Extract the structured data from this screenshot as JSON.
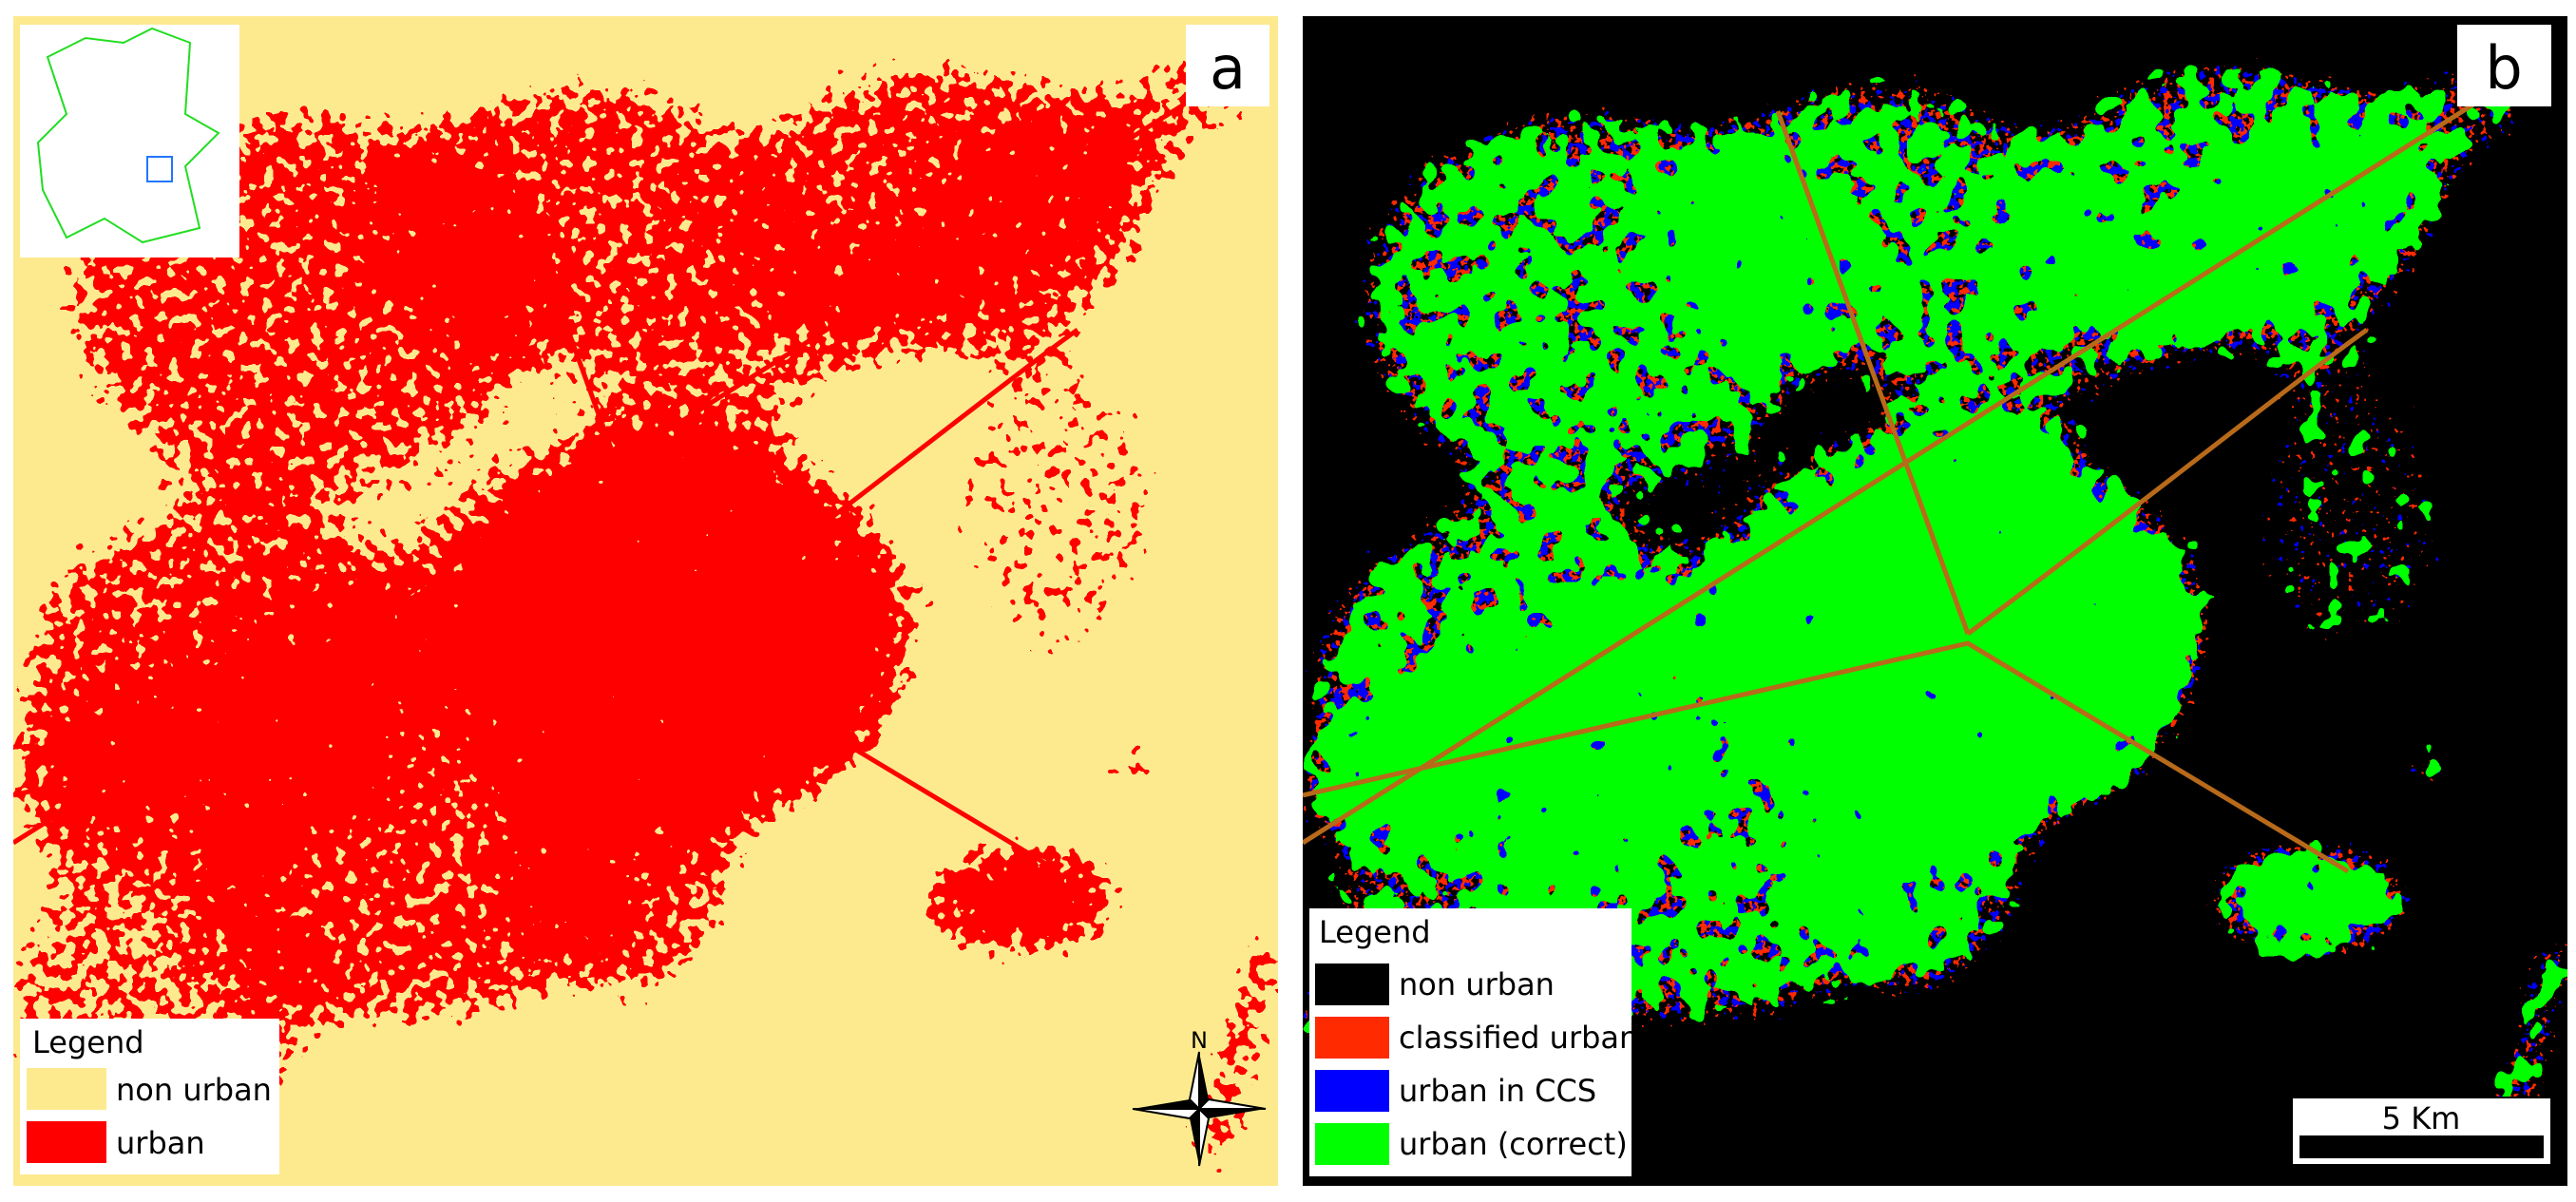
{
  "panels": [
    {
      "label": "a",
      "legend": {
        "title": "Legend",
        "items": [
          {
            "label": "non urban",
            "color": "#fdea8f"
          },
          {
            "label": "urban",
            "color": "#ff0000"
          }
        ]
      },
      "north": "N"
    },
    {
      "label": "b",
      "legend": {
        "title": "Legend",
        "items": [
          {
            "label": "non urban",
            "color": "#000000"
          },
          {
            "label": "classified urban",
            "color": "#ff2a00"
          },
          {
            "label": "urban in CCS",
            "color": "#0000ff"
          },
          {
            "label": "urban (correct)",
            "color": "#00ff00"
          }
        ]
      },
      "scale_bar": "5 Km"
    }
  ]
}
